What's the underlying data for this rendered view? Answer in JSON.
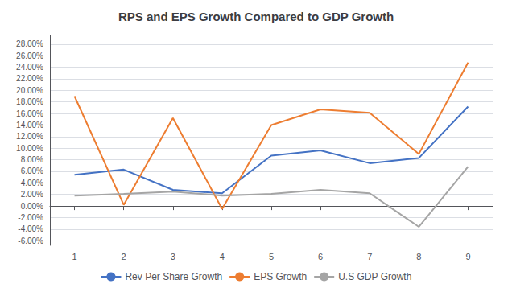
{
  "chart_data": {
    "type": "line",
    "title": "RPS and EPS Growth Compared to GDP Growth",
    "x": [
      1,
      2,
      3,
      4,
      5,
      6,
      7,
      8,
      9
    ],
    "series": [
      {
        "name": "Rev Per Share Growth",
        "color": "#4472C4",
        "values": [
          0.054,
          0.063,
          0.028,
          0.022,
          0.087,
          0.096,
          0.074,
          0.083,
          0.172
        ]
      },
      {
        "name": "EPS Growth",
        "color": "#ED7D31",
        "values": [
          0.19,
          0.002,
          0.152,
          -0.005,
          0.14,
          0.167,
          0.161,
          0.09,
          0.248
        ]
      },
      {
        "name": "U.S GDP Growth",
        "color": "#A5A5A5",
        "values": [
          0.018,
          0.021,
          0.025,
          0.018,
          0.021,
          0.028,
          0.022,
          -0.036,
          0.068
        ]
      }
    ],
    "xlim": [
      0.5,
      9.5
    ],
    "xticks": [
      1,
      2,
      3,
      4,
      5,
      6,
      7,
      8,
      9
    ],
    "ylim": [
      -0.068,
      0.295
    ],
    "yticks": [
      {
        "value": -0.06,
        "label": "-6.00%"
      },
      {
        "value": -0.04,
        "label": "-4.00%"
      },
      {
        "value": -0.02,
        "label": "-2.00%"
      },
      {
        "value": 0.0,
        "label": "0.00%"
      },
      {
        "value": 0.02,
        "label": "2.00%"
      },
      {
        "value": 0.04,
        "label": "4.00%"
      },
      {
        "value": 0.06,
        "label": "6.00%"
      },
      {
        "value": 0.08,
        "label": "8.00%"
      },
      {
        "value": 0.1,
        "label": "10.00%"
      },
      {
        "value": 0.12,
        "label": "12.00%"
      },
      {
        "value": 0.14,
        "label": "14.00%"
      },
      {
        "value": 0.16,
        "label": "16.00%"
      },
      {
        "value": 0.18,
        "label": "18.00%"
      },
      {
        "value": 0.2,
        "label": "20.00%"
      },
      {
        "value": 0.22,
        "label": "22.00%"
      },
      {
        "value": 0.24,
        "label": "24.00%"
      },
      {
        "value": 0.26,
        "label": "26.00%"
      },
      {
        "value": 0.28,
        "label": "28.00%"
      }
    ],
    "grid": true,
    "legend": "bottom",
    "marker": "none"
  }
}
